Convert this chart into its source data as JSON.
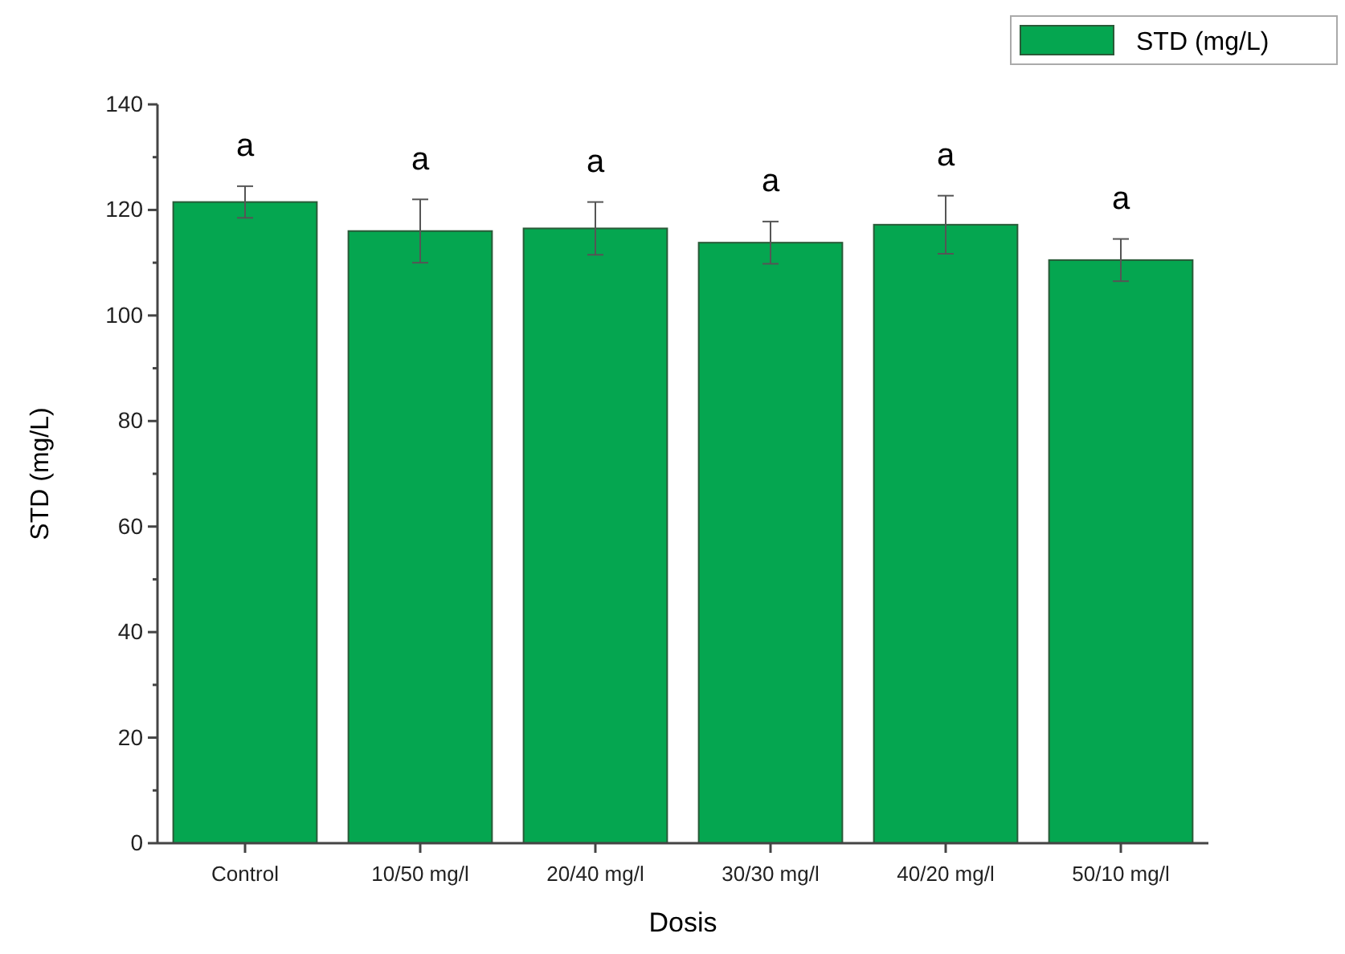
{
  "chart_data": {
    "type": "bar",
    "xlabel": "Dosis",
    "ylabel": "STD (mg/L)",
    "categories": [
      "Control",
      "10/50 mg/l",
      "20/40 mg/l",
      "30/30 mg/l",
      "40/20 mg/l",
      "50/10 mg/l"
    ],
    "series": [
      {
        "name": "STD (mg/L)",
        "color": "#05a650",
        "values": [
          121.5,
          116,
          116.5,
          113.8,
          117.2,
          110.5
        ],
        "errors": [
          3,
          6,
          5,
          4,
          5.5,
          4
        ]
      }
    ],
    "ylim": [
      0,
      140
    ],
    "yticks": [
      0,
      {
        "value": 10,
        "label": null
      },
      20,
      {
        "value": 30,
        "label": null
      },
      40,
      {
        "value": 50,
        "label": null
      },
      60,
      {
        "value": 70,
        "label": null
      },
      80,
      {
        "value": 90,
        "label": null
      },
      100,
      {
        "value": 110,
        "label": null
      },
      120,
      {
        "value": 130,
        "label": null
      },
      140
    ],
    "annotations": [
      {
        "text": "a",
        "x": "Control",
        "y": 121.5
      },
      {
        "text": "a",
        "x": "10/50 mg/l",
        "y": 116
      },
      {
        "text": "a",
        "x": "20/40 mg/l",
        "y": 116.5
      },
      {
        "text": "a",
        "x": "30/30 mg/l",
        "y": 113.8
      },
      {
        "text": "a",
        "x": "40/20 mg/l",
        "y": 117.2
      },
      {
        "text": "a",
        "x": "50/10 mg/l",
        "y": 110.5
      }
    ],
    "legend": "top right",
    "grid": false
  }
}
